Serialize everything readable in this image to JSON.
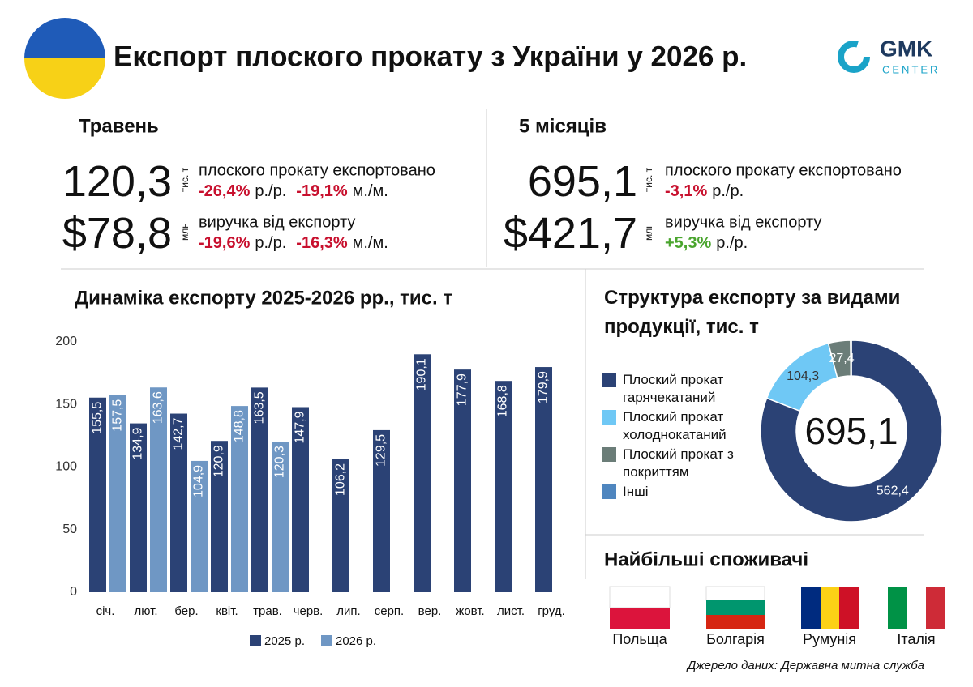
{
  "header": {
    "title": "Експорт плоского прокату з України у 2026 р.",
    "logo_main": "GMK",
    "logo_sub": "CENTER"
  },
  "stats": [
    {
      "period": "Травень",
      "items": [
        {
          "value": "120,3",
          "unit": "тис. т",
          "desc": "плоского прокату експортовано",
          "changes": [
            {
              "value": "-26,4%",
              "suffix": "р./р.",
              "color": "#c8102e"
            },
            {
              "value": "-19,1%",
              "suffix": "м./м.",
              "color": "#c8102e"
            }
          ]
        },
        {
          "value": "$78,8",
          "unit": "млн",
          "desc": "виручка від експорту",
          "changes": [
            {
              "value": "-19,6%",
              "suffix": "р./р.",
              "color": "#c8102e"
            },
            {
              "value": "-16,3%",
              "suffix": "м./м.",
              "color": "#c8102e"
            }
          ]
        }
      ]
    },
    {
      "period": "5 місяців",
      "items": [
        {
          "value": "695,1",
          "unit": "тис. т",
          "desc": "плоского прокату експортовано",
          "changes": [
            {
              "value": "-3,1%",
              "suffix": "р./р.",
              "color": "#c8102e"
            }
          ]
        },
        {
          "value": "$421,7",
          "unit": "млн",
          "desc": "виручка від експорту",
          "changes": [
            {
              "value": "+5,3%",
              "suffix": "р./р.",
              "color": "#4aa52e"
            }
          ]
        }
      ]
    }
  ],
  "chart_data": [
    {
      "type": "bar",
      "title": "Динаміка експорту 2025-2026 рр., тис. т",
      "categories": [
        "січ.",
        "лют.",
        "бер.",
        "квіт.",
        "трав.",
        "черв.",
        "лип.",
        "серп.",
        "вер.",
        "жовт.",
        "лист.",
        "груд."
      ],
      "series": [
        {
          "name": "2025 р.",
          "color": "#2b4275",
          "values": [
            155.5,
            134.9,
            142.7,
            120.9,
            163.5,
            147.9,
            106.2,
            129.5,
            190.1,
            177.9,
            168.8,
            179.9
          ],
          "value_labels": [
            "155,5",
            "134,9",
            "142,7",
            "120,9",
            "163,5",
            "147,9",
            "106,2",
            "129,5",
            "190,1",
            "177,9",
            "168,8",
            "179,9"
          ]
        },
        {
          "name": "2026 р.",
          "color": "#6f97c4",
          "values": [
            157.5,
            163.6,
            104.9,
            148.8,
            120.3,
            null,
            null,
            null,
            null,
            null,
            null,
            null
          ],
          "value_labels": [
            "157,5",
            "163,6",
            "104,9",
            "148,8",
            "120,3",
            null,
            null,
            null,
            null,
            null,
            null,
            null
          ]
        }
      ],
      "ylim": [
        0,
        200
      ],
      "yticks": [
        0,
        50,
        100,
        150,
        200
      ],
      "grid": false,
      "legend": "bottom"
    },
    {
      "type": "pie",
      "title": "Структура експорту за видами продукції, тис. т",
      "categories": [
        "Плоский прокат гарячекатаний",
        "Плоский прокат холоднокатаний",
        "Плоский прокат з покриттям",
        "Інші"
      ],
      "values": [
        562.4,
        104.3,
        27.4,
        1.0
      ],
      "value_labels": [
        "562,4",
        "104,3",
        "27,4",
        null
      ],
      "colors": [
        "#2b4275",
        "#6fc8f5",
        "#6b7d78",
        "#4f86bf"
      ],
      "center_label": "695,1",
      "legend": "left"
    }
  ],
  "consumers": {
    "title": "Найбільші споживачі",
    "countries": [
      "Польща",
      "Болгарія",
      "Румунія",
      "Італія"
    ]
  },
  "source": "Джерело даних: Державна митна служба"
}
